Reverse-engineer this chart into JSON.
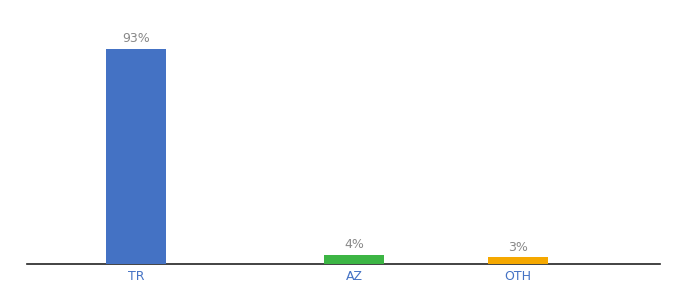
{
  "categories": [
    "TR",
    "AZ",
    "OTH"
  ],
  "values": [
    93,
    4,
    3
  ],
  "bar_colors": [
    "#4472c4",
    "#3cb544",
    "#f5a800"
  ],
  "labels": [
    "93%",
    "4%",
    "3%"
  ],
  "label_fontsize": 9,
  "tick_fontsize": 9,
  "tick_color": "#4472c4",
  "label_color": "#888888",
  "ylim": [
    0,
    105
  ],
  "background_color": "#ffffff",
  "bar_width": 0.55,
  "x_positions": [
    1,
    3,
    4.5
  ]
}
